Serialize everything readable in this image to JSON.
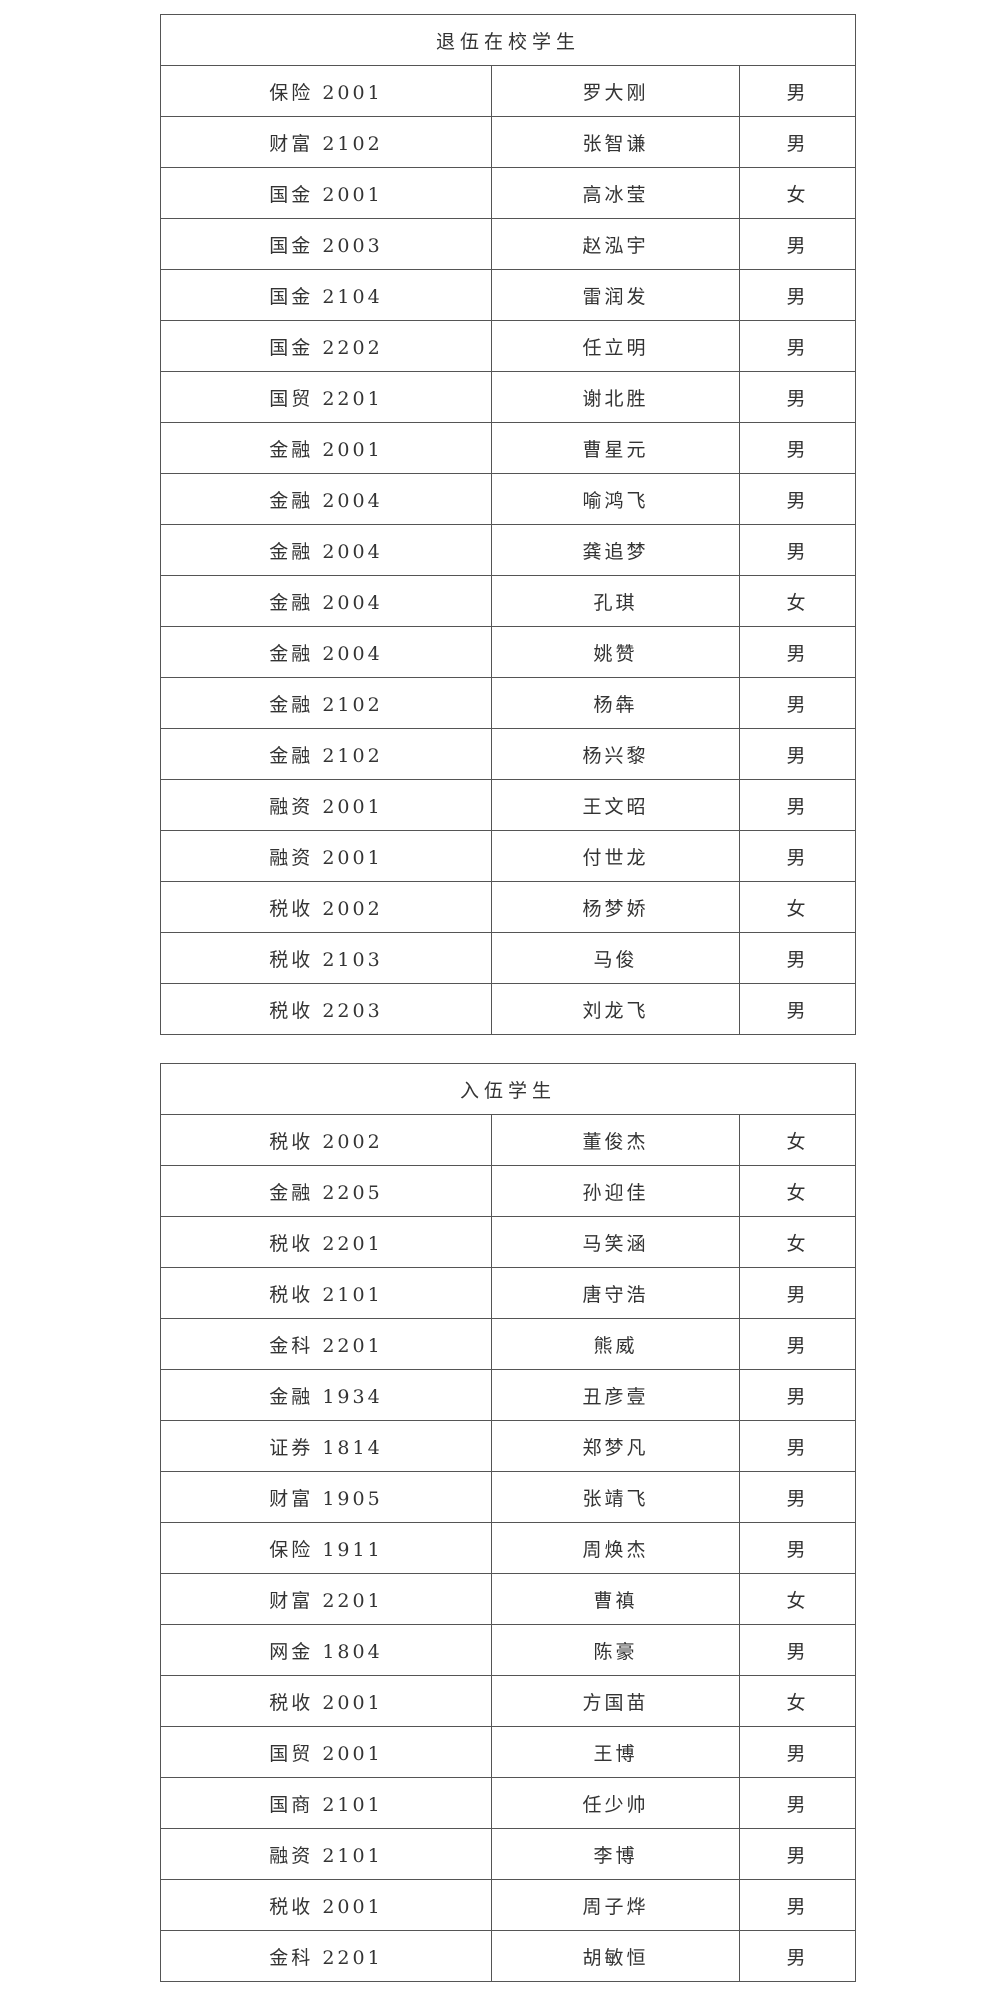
{
  "sections": [
    {
      "title": "退伍在校学生",
      "rows": [
        [
          "保险 2001",
          "罗大刚",
          "男"
        ],
        [
          "财富 2102",
          "张智谦",
          "男"
        ],
        [
          "国金 2001",
          "高冰莹",
          "女"
        ],
        [
          "国金 2003",
          "赵泓宇",
          "男"
        ],
        [
          "国金 2104",
          "雷润发",
          "男"
        ],
        [
          "国金 2202",
          "任立明",
          "男"
        ],
        [
          "国贸 2201",
          "谢北胜",
          "男"
        ],
        [
          "金融 2001",
          "曹星元",
          "男"
        ],
        [
          "金融 2004",
          "喻鸿飞",
          "男"
        ],
        [
          "金融 2004",
          "龚追梦",
          "男"
        ],
        [
          "金融 2004",
          "孔琪",
          "女"
        ],
        [
          "金融 2004",
          "姚赞",
          "男"
        ],
        [
          "金融 2102",
          "杨犇",
          "男"
        ],
        [
          "金融 2102",
          "杨兴黎",
          "男"
        ],
        [
          "融资 2001",
          "王文昭",
          "男"
        ],
        [
          "融资 2001",
          "付世龙",
          "男"
        ],
        [
          "税收 2002",
          "杨梦娇",
          "女"
        ],
        [
          "税收 2103",
          "马俊",
          "男"
        ],
        [
          "税收 2203",
          "刘龙飞",
          "男"
        ]
      ]
    },
    {
      "title": "入伍学生",
      "rows": [
        [
          "税收 2002",
          "董俊杰",
          "女"
        ],
        [
          "金融 2205",
          "孙迎佳",
          "女"
        ],
        [
          "税收 2201",
          "马笑涵",
          "女"
        ],
        [
          "税收 2101",
          "唐守浩",
          "男"
        ],
        [
          "金科 2201",
          "熊威",
          "男"
        ],
        [
          "金融 1934",
          "丑彦壹",
          "男"
        ],
        [
          "证券 1814",
          "郑梦凡",
          "男"
        ],
        [
          "财富 1905",
          "张靖飞",
          "男"
        ],
        [
          "保险 1911",
          "周焕杰",
          "男"
        ],
        [
          "财富 2201",
          "曹禛",
          "女"
        ],
        [
          "网金 1804",
          "陈豪",
          "男"
        ],
        [
          "税收 2001",
          "方国苗",
          "女"
        ],
        [
          "国贸 2001",
          "王博",
          "男"
        ],
        [
          "国商 2101",
          "任少帅",
          "男"
        ],
        [
          "融资 2101",
          "李博",
          "男"
        ],
        [
          "税收 2001",
          "周子烨",
          "男"
        ],
        [
          "金科 2201",
          "胡敏恒",
          "男"
        ]
      ]
    }
  ]
}
